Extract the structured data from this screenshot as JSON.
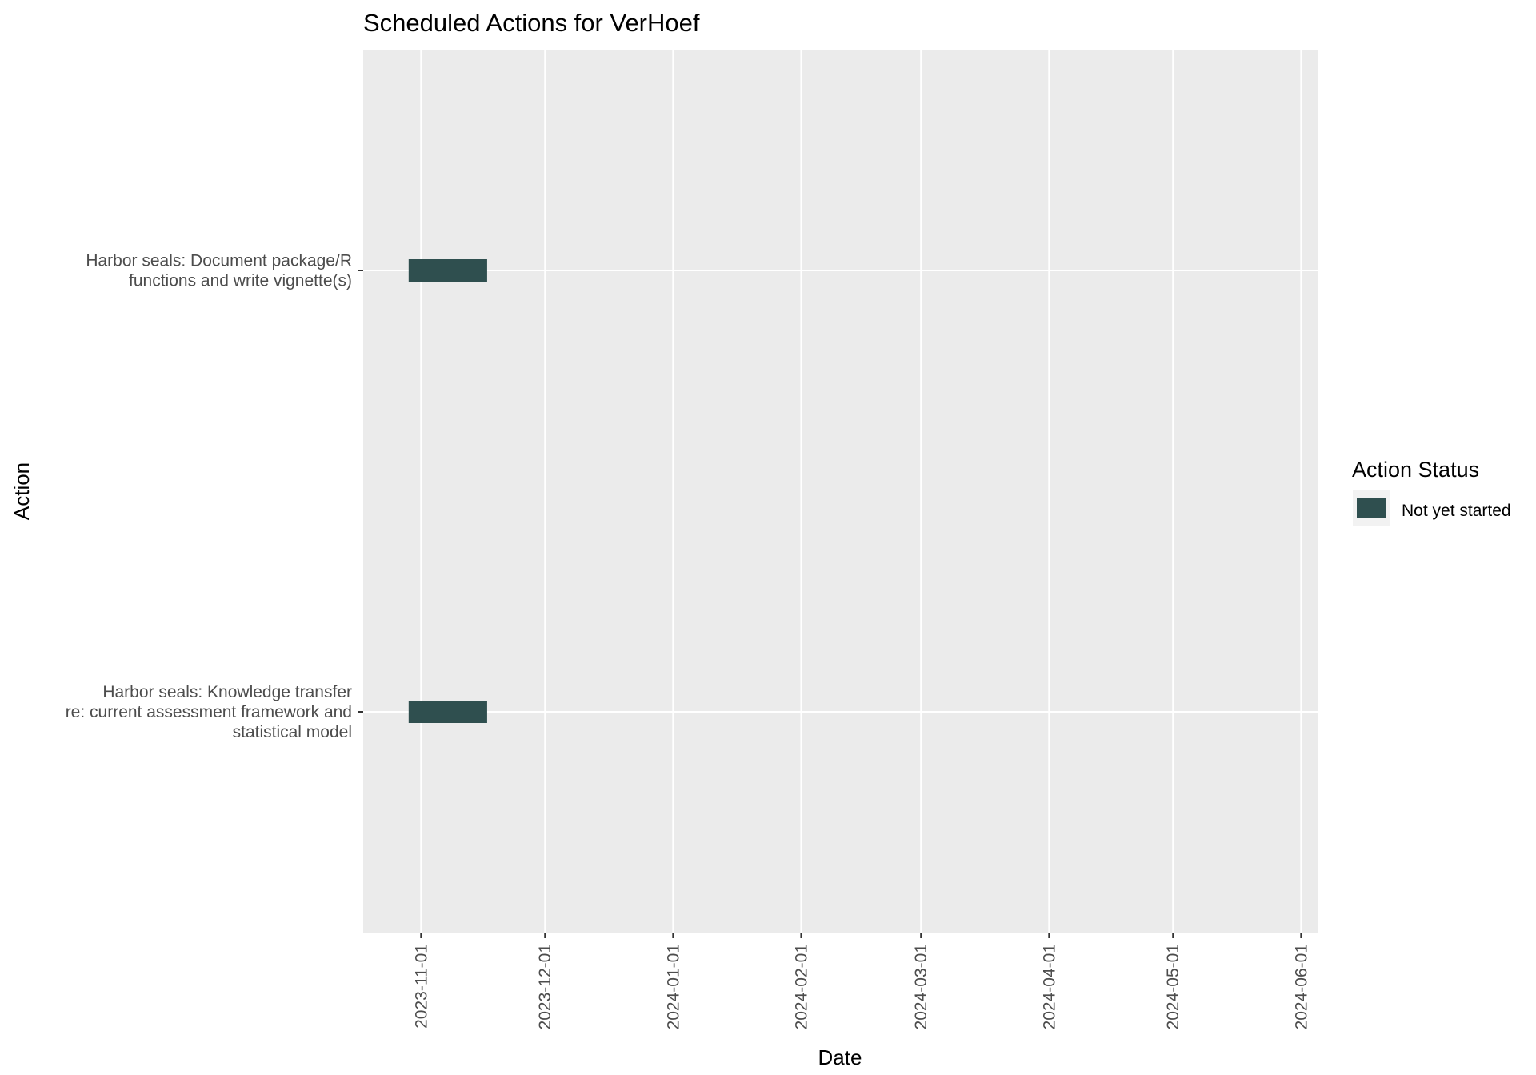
{
  "chart_data": {
    "type": "bar",
    "orientation": "horizontal-range",
    "title": "Scheduled Actions for VerHoef",
    "xlabel": "Date",
    "ylabel": "Action",
    "x_ticks": [
      "2023-11-01",
      "2023-12-01",
      "2024-01-01",
      "2024-02-01",
      "2024-03-01",
      "2024-04-01",
      "2024-05-01",
      "2024-06-01"
    ],
    "xlim": [
      "2023-10-18",
      "2024-06-05"
    ],
    "categories": [
      {
        "label_lines": [
          "Harbor seals: Document package/R",
          "functions and write vignette(s)"
        ]
      },
      {
        "label_lines": [
          "Harbor seals: Knowledge transfer",
          "re: current assessment framework and",
          "statistical model"
        ]
      }
    ],
    "series": [
      {
        "name": "Not yet started",
        "color": "#2f4f4f",
        "values": [
          {
            "start": "2023-10-29",
            "end": "2023-11-17"
          },
          {
            "start": "2023-10-29",
            "end": "2023-11-17"
          }
        ]
      }
    ],
    "legend": {
      "title": "Action Status",
      "placement": "right",
      "items": [
        "Not yet started"
      ]
    },
    "grid": true,
    "panel_color": "#ebebeb",
    "grid_color": "#ffffff"
  }
}
